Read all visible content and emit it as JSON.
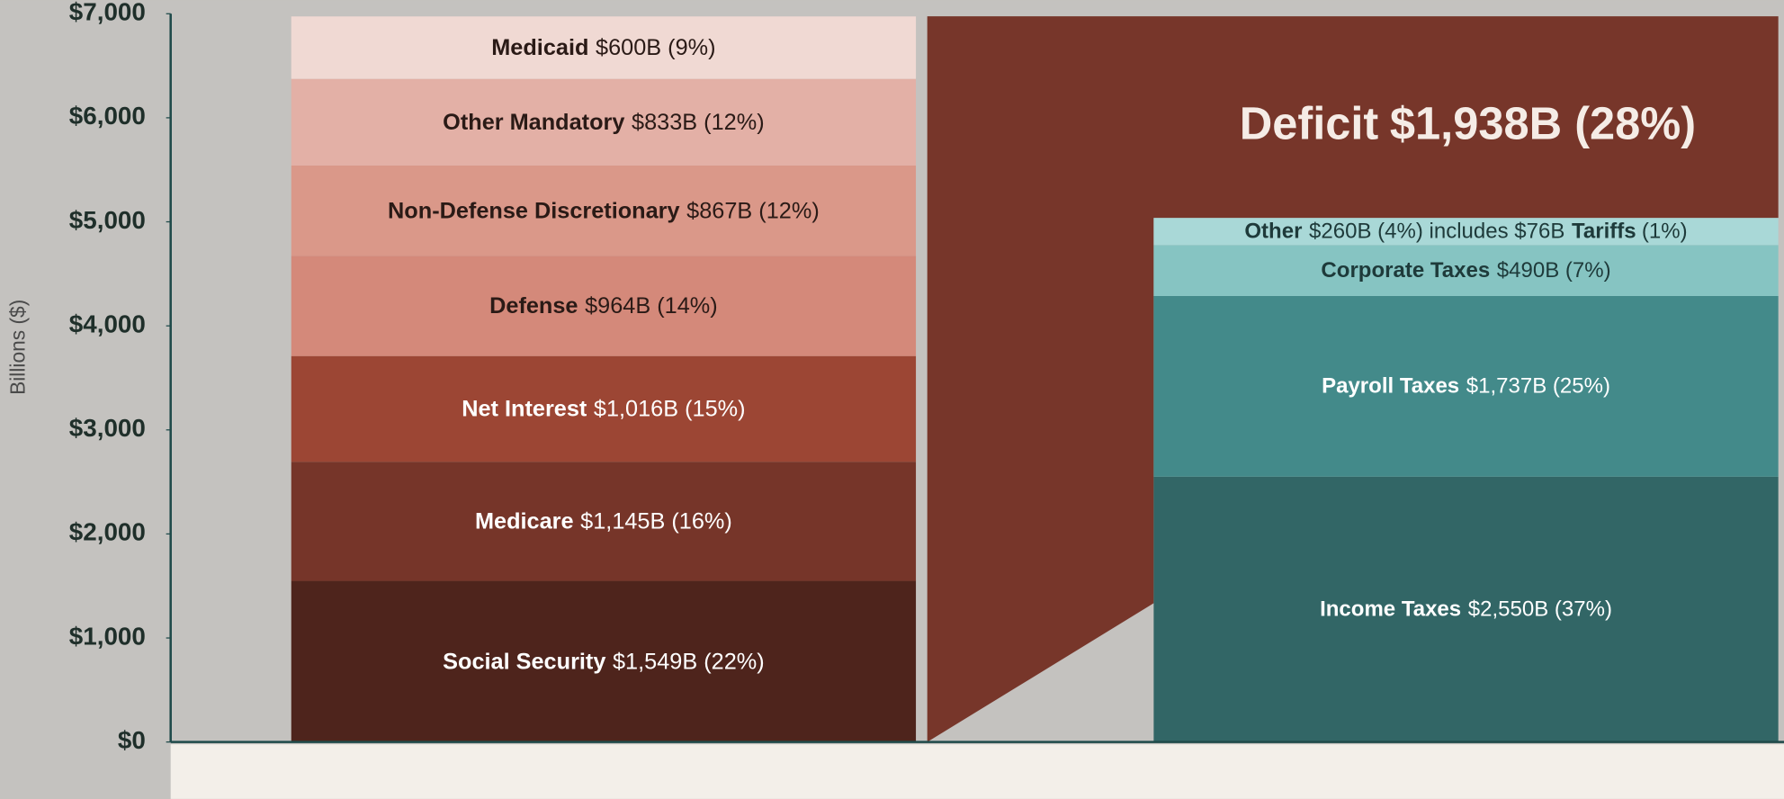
{
  "chart_data": {
    "type": "stacked_bar",
    "y_label": "Billions ($)",
    "ylim": [
      0,
      7000
    ],
    "yticks": [
      {
        "value": 0,
        "label": "$0"
      },
      {
        "value": 1000,
        "label": "$1,000"
      },
      {
        "value": 2000,
        "label": "$2,000"
      },
      {
        "value": 3000,
        "label": "$3,000"
      },
      {
        "value": 4000,
        "label": "$4,000"
      },
      {
        "value": 5000,
        "label": "$5,000"
      },
      {
        "value": 6000,
        "label": "$6,000"
      },
      {
        "value": 7000,
        "label": "$7,000"
      }
    ],
    "spending": [
      {
        "name": "Social Security",
        "value": 1549,
        "value_label": "$1,549B (22%)",
        "color": "#4e241c",
        "text_color": "#ffffff"
      },
      {
        "name": "Medicare",
        "value": 1145,
        "value_label": "$1,145B (16%)",
        "color": "#763529",
        "text_color": "#ffffff"
      },
      {
        "name": "Net Interest",
        "value": 1016,
        "value_label": "$1,016B (15%)",
        "color": "#9c4634",
        "text_color": "#ffffff"
      },
      {
        "name": "Defense",
        "value": 964,
        "value_label": "$964B (14%)",
        "color": "#d4897a",
        "text_color": "#2a1a16"
      },
      {
        "name": "Non-Defense Discretionary",
        "value": 867,
        "value_label": "$867B (12%)",
        "color": "#da9889",
        "text_color": "#2a1a16"
      },
      {
        "name": "Other Mandatory",
        "value": 833,
        "value_label": "$833B (12%)",
        "color": "#e3b0a6",
        "text_color": "#2a1a16"
      },
      {
        "name": "Medicaid",
        "value": 600,
        "value_label": "$600B (9%)",
        "color": "#f0d9d3",
        "text_color": "#2a1a16"
      }
    ],
    "revenue": [
      {
        "name": "Income Taxes",
        "value": 2550,
        "value_label": "$2,550B (37%)",
        "color": "#326666",
        "text_color": "#ffffff"
      },
      {
        "name": "Payroll Taxes",
        "value": 1737,
        "value_label": "$1,737B (25%)",
        "color": "#438a8a",
        "text_color": "#ffffff"
      },
      {
        "name": "Corporate Taxes",
        "value": 490,
        "value_label": "$490B (7%)",
        "color": "#86c4c2",
        "text_color": "#1e3a3a"
      },
      {
        "name": "Other",
        "value": 260,
        "value_label": "$260B (4%) includes $76B",
        "color": "#a9d8d7",
        "text_color": "#1e3a3a"
      }
    ],
    "tariff_note": {
      "name": "Tariffs",
      "label": "(1%)"
    },
    "deficit": {
      "name": "Deficit",
      "value": 1938,
      "value_label": "$1,938B (28%)",
      "color": "#77362a",
      "text_color": "#f5ece6"
    }
  }
}
